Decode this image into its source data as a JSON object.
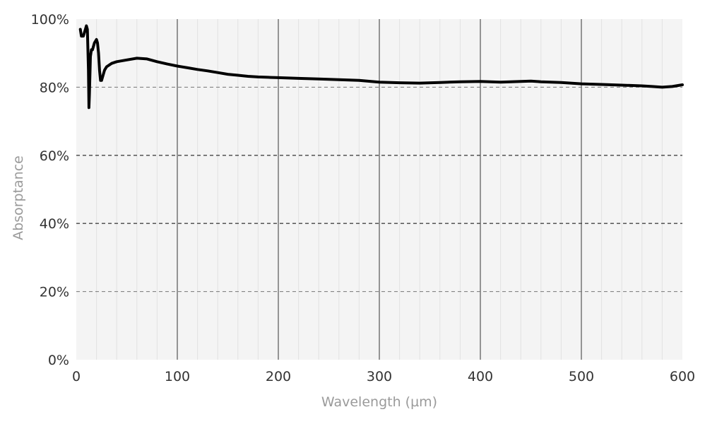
{
  "chart_data": {
    "type": "line",
    "xlabel": "Wavelength (µm)",
    "ylabel": "Absorptance",
    "xlim": [
      0,
      600
    ],
    "ylim": [
      0,
      1
    ],
    "x_ticks": [
      "0",
      "100",
      "200",
      "300",
      "400",
      "500",
      "600"
    ],
    "y_ticks": [
      "0%",
      "20%",
      "40%",
      "60%",
      "80%",
      "100%"
    ],
    "grid": {
      "x_major_step": 100,
      "x_minor_step": 20,
      "y_dashed_step": 0.2
    },
    "colors": {
      "plot_background": "#f4f4f4",
      "line": "#000000"
    },
    "series": [
      {
        "x": [
          4,
          5,
          7,
          9,
          10,
          11,
          12,
          12.5,
          13,
          14,
          15,
          16,
          18,
          20,
          21,
          22,
          23,
          24,
          25,
          26,
          28,
          30,
          35,
          40,
          50,
          60,
          70,
          80,
          90,
          100,
          110,
          120,
          130,
          140,
          150,
          160,
          170,
          180,
          190,
          200,
          220,
          240,
          260,
          280,
          300,
          320,
          340,
          360,
          380,
          400,
          420,
          440,
          450,
          460,
          480,
          500,
          520,
          540,
          560,
          570,
          580,
          590,
          600
        ],
        "y": [
          0.97,
          0.95,
          0.95,
          0.97,
          0.98,
          0.97,
          0.85,
          0.74,
          0.78,
          0.89,
          0.91,
          0.91,
          0.93,
          0.94,
          0.93,
          0.9,
          0.85,
          0.82,
          0.82,
          0.83,
          0.85,
          0.86,
          0.87,
          0.875,
          0.88,
          0.885,
          0.883,
          0.875,
          0.868,
          0.862,
          0.857,
          0.852,
          0.848,
          0.843,
          0.838,
          0.835,
          0.832,
          0.83,
          0.829,
          0.828,
          0.826,
          0.824,
          0.822,
          0.82,
          0.815,
          0.813,
          0.812,
          0.814,
          0.816,
          0.817,
          0.815,
          0.817,
          0.818,
          0.816,
          0.814,
          0.81,
          0.808,
          0.806,
          0.804,
          0.802,
          0.8,
          0.802,
          0.807
        ]
      }
    ]
  }
}
